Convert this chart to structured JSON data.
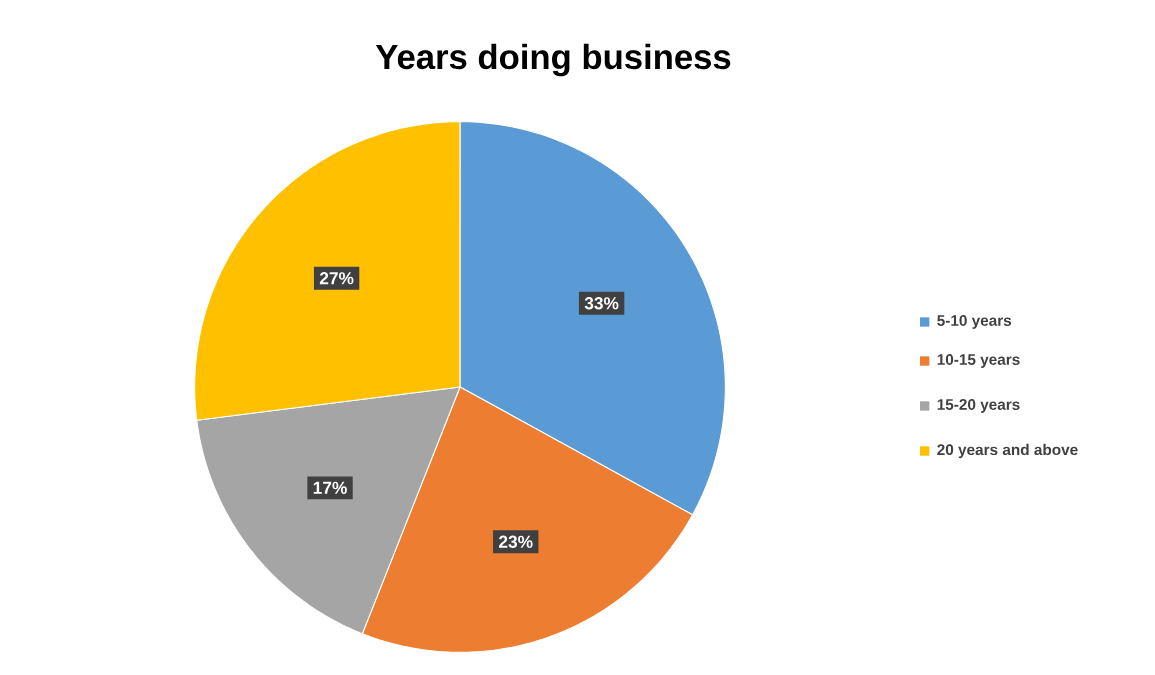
{
  "chart_data": {
    "type": "pie",
    "title": "Years doing business",
    "categories": [
      "5-10 years",
      "10-15 years",
      "15-20 years",
      "20 years and above"
    ],
    "values": [
      33,
      23,
      17,
      27
    ],
    "colors": [
      "#5b9bd5",
      "#ed7d31",
      "#a5a5a5",
      "#ffc000"
    ],
    "value_labels": [
      "33%",
      "23%",
      "17%",
      "27%"
    ],
    "legend": "right"
  }
}
